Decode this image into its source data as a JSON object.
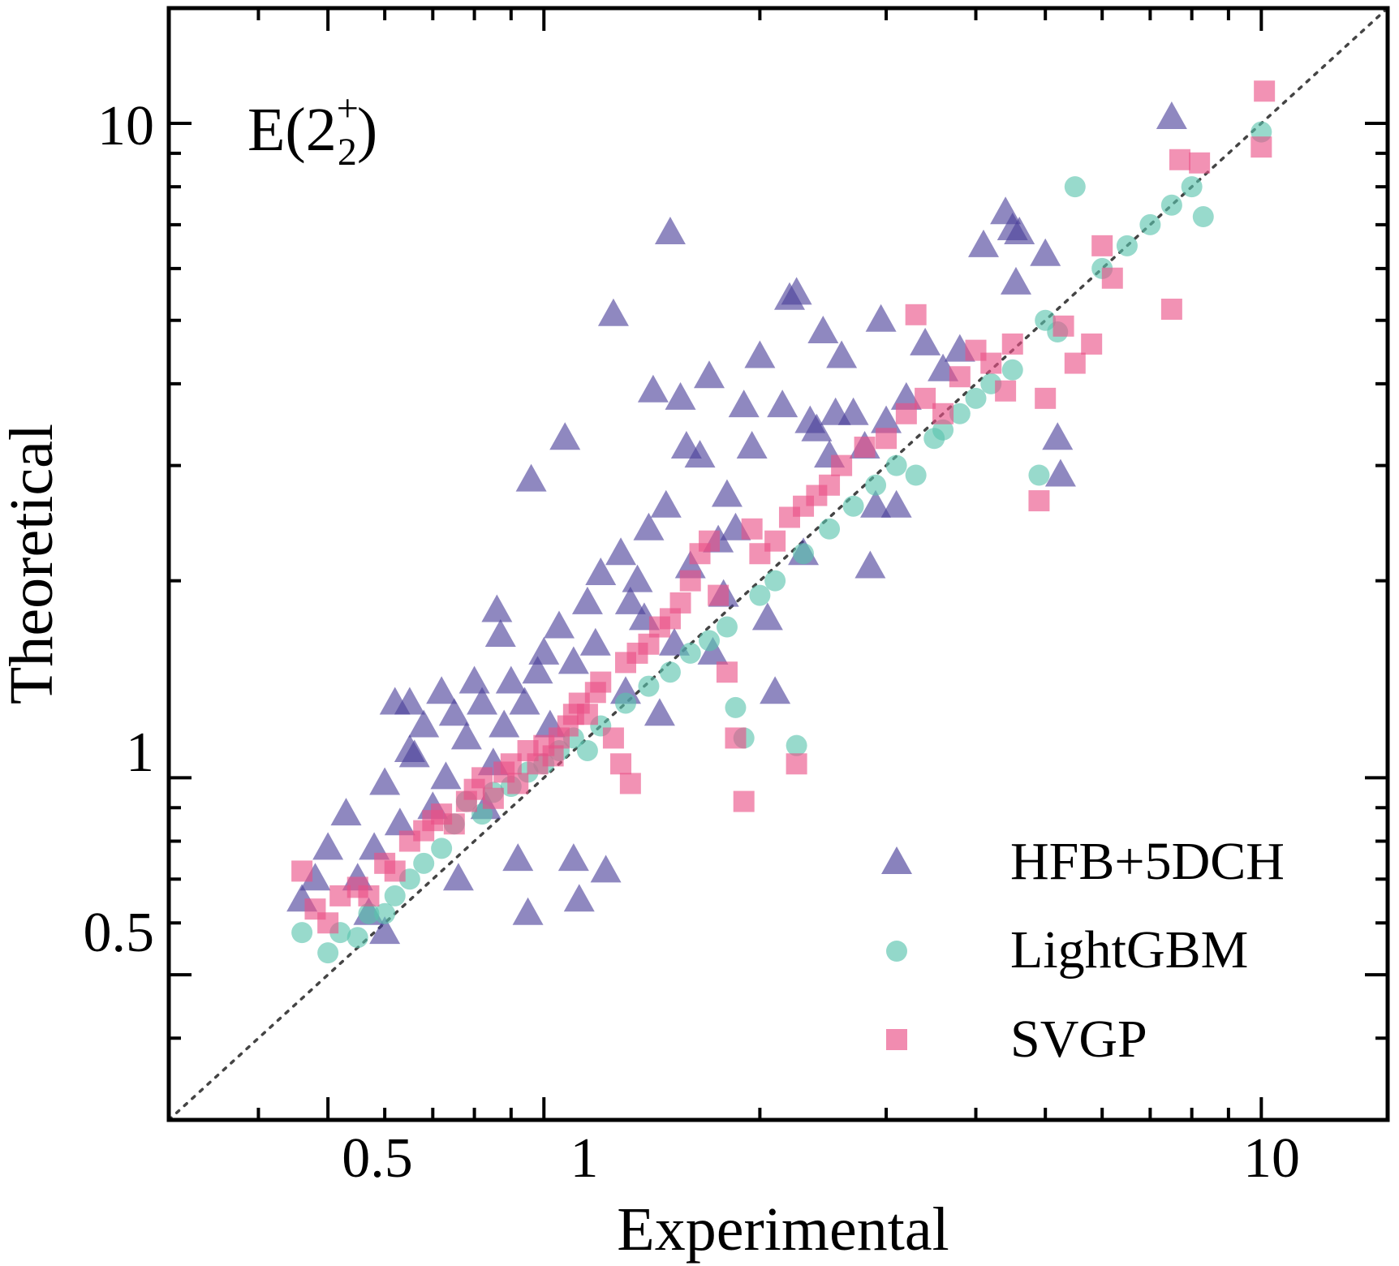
{
  "chart_data": {
    "type": "scatter",
    "title": "",
    "annotation": {
      "base": "E(2",
      "sup": "+",
      "sub": "2",
      "close": ")"
    },
    "xlabel": "Experimental",
    "ylabel": "Theoretical",
    "xscale": "log",
    "yscale": "log",
    "xlim": [
      0.3,
      15
    ],
    "ylim": [
      0.3,
      15
    ],
    "x_tick_labels": [
      "0.5",
      "1",
      "10"
    ],
    "y_tick_labels": [
      "0.5",
      "1",
      "10"
    ],
    "reference_line": "y = x (dotted)",
    "grid": false,
    "legend_position": "bottom-right",
    "legend": [
      "HFB+5DCH",
      "LightGBM",
      "SVGP"
    ],
    "series": [
      {
        "name": "HFB+5DCH",
        "marker": "triangle",
        "color": "#4a3f9a",
        "points": [
          [
            0.46,
            0.65
          ],
          [
            0.48,
            0.7
          ],
          [
            0.5,
            0.78
          ],
          [
            0.53,
            0.88
          ],
          [
            0.55,
            0.7
          ],
          [
            0.57,
            0.62
          ],
          [
            0.58,
            0.78
          ],
          [
            0.6,
            0.98
          ],
          [
            0.6,
            0.58
          ],
          [
            0.62,
            1.3
          ],
          [
            0.63,
            0.85
          ],
          [
            0.65,
            1.3
          ],
          [
            0.65,
            1.1
          ],
          [
            0.66,
            1.08
          ],
          [
            0.68,
            1.2
          ],
          [
            0.7,
            0.9
          ],
          [
            0.72,
            1.35
          ],
          [
            0.73,
            1.0
          ],
          [
            0.75,
            1.25
          ],
          [
            0.76,
            0.7
          ],
          [
            0.78,
            1.15
          ],
          [
            0.8,
            1.4
          ],
          [
            0.82,
            1.3
          ],
          [
            0.83,
            0.9
          ],
          [
            0.85,
            1.05
          ],
          [
            0.86,
            1.8
          ],
          [
            0.87,
            1.65
          ],
          [
            0.88,
            1.2
          ],
          [
            0.9,
            1.4
          ],
          [
            0.92,
            0.75
          ],
          [
            0.94,
            1.3
          ],
          [
            0.95,
            0.62
          ],
          [
            0.96,
            2.85
          ],
          [
            0.98,
            1.45
          ],
          [
            1.0,
            1.55
          ],
          [
            1.02,
            1.2
          ],
          [
            1.05,
            1.7
          ],
          [
            1.07,
            3.3
          ],
          [
            1.1,
            1.5
          ],
          [
            1.1,
            0.75
          ],
          [
            1.12,
            0.65
          ],
          [
            1.15,
            1.85
          ],
          [
            1.18,
            1.6
          ],
          [
            1.2,
            2.05
          ],
          [
            1.22,
            0.72
          ],
          [
            1.25,
            5.1
          ],
          [
            1.28,
            2.2
          ],
          [
            1.3,
            1.35
          ],
          [
            1.32,
            1.85
          ],
          [
            1.35,
            2.0
          ],
          [
            1.38,
            1.75
          ],
          [
            1.4,
            2.4
          ],
          [
            1.42,
            3.9
          ],
          [
            1.45,
            1.25
          ],
          [
            1.48,
            2.6
          ],
          [
            1.5,
            6.8
          ],
          [
            1.52,
            1.6
          ],
          [
            1.55,
            3.8
          ],
          [
            1.58,
            3.2
          ],
          [
            1.6,
            2.1
          ],
          [
            1.65,
            3.1
          ],
          [
            1.7,
            4.1
          ],
          [
            1.72,
            1.55
          ],
          [
            1.75,
            2.3
          ],
          [
            1.78,
            1.9
          ],
          [
            1.8,
            2.7
          ],
          [
            1.85,
            2.4
          ],
          [
            1.9,
            3.7
          ],
          [
            1.95,
            3.2
          ],
          [
            2.0,
            4.4
          ],
          [
            2.05,
            1.75
          ],
          [
            2.1,
            1.35
          ],
          [
            2.15,
            3.7
          ],
          [
            2.2,
            5.4
          ],
          [
            2.25,
            5.5
          ],
          [
            2.3,
            2.2
          ],
          [
            2.35,
            3.5
          ],
          [
            2.4,
            3.4
          ],
          [
            2.45,
            4.8
          ],
          [
            2.5,
            3.1
          ],
          [
            2.55,
            3.6
          ],
          [
            2.6,
            4.4
          ],
          [
            2.7,
            3.6
          ],
          [
            2.8,
            3.2
          ],
          [
            2.85,
            2.1
          ],
          [
            2.9,
            2.6
          ],
          [
            2.95,
            5.0
          ],
          [
            3.0,
            3.5
          ],
          [
            3.1,
            2.6
          ],
          [
            3.2,
            3.8
          ],
          [
            3.4,
            4.6
          ],
          [
            3.6,
            4.2
          ],
          [
            3.8,
            4.5
          ],
          [
            4.1,
            6.5
          ],
          [
            4.4,
            7.3
          ],
          [
            4.5,
            6.9
          ],
          [
            4.55,
            5.7
          ],
          [
            4.6,
            6.8
          ],
          [
            5.0,
            6.3
          ],
          [
            5.2,
            3.3
          ],
          [
            5.25,
            2.9
          ],
          [
            7.5,
            10.2
          ]
        ]
      },
      {
        "name": "LightGBM",
        "marker": "circle",
        "color": "#59c3ad",
        "points": [
          [
            0.46,
            0.58
          ],
          [
            0.5,
            0.54
          ],
          [
            0.52,
            0.58
          ],
          [
            0.55,
            0.57
          ],
          [
            0.57,
            0.62
          ],
          [
            0.6,
            0.62
          ],
          [
            0.62,
            0.66
          ],
          [
            0.65,
            0.7
          ],
          [
            0.68,
            0.74
          ],
          [
            0.72,
            0.78
          ],
          [
            0.75,
            0.85
          ],
          [
            0.78,
            0.92
          ],
          [
            0.82,
            0.88
          ],
          [
            0.85,
            0.95
          ],
          [
            0.9,
            0.97
          ],
          [
            0.95,
            1.02
          ],
          [
            1.0,
            1.05
          ],
          [
            1.05,
            1.1
          ],
          [
            1.1,
            1.15
          ],
          [
            1.15,
            1.1
          ],
          [
            1.2,
            1.2
          ],
          [
            1.3,
            1.3
          ],
          [
            1.4,
            1.38
          ],
          [
            1.5,
            1.45
          ],
          [
            1.6,
            1.55
          ],
          [
            1.7,
            1.62
          ],
          [
            1.8,
            1.7
          ],
          [
            1.85,
            1.28
          ],
          [
            1.9,
            1.15
          ],
          [
            2.0,
            1.9
          ],
          [
            2.1,
            2.0
          ],
          [
            2.25,
            1.12
          ],
          [
            2.3,
            2.2
          ],
          [
            2.5,
            2.4
          ],
          [
            2.7,
            2.6
          ],
          [
            2.9,
            2.8
          ],
          [
            3.1,
            3.0
          ],
          [
            3.3,
            2.9
          ],
          [
            3.5,
            3.3
          ],
          [
            3.6,
            3.4
          ],
          [
            3.8,
            3.6
          ],
          [
            4.0,
            3.8
          ],
          [
            4.2,
            4.0
          ],
          [
            4.5,
            4.2
          ],
          [
            4.9,
            2.9
          ],
          [
            5.0,
            5.0
          ],
          [
            5.2,
            4.8
          ],
          [
            5.5,
            8.0
          ],
          [
            6.0,
            6.0
          ],
          [
            6.5,
            6.5
          ],
          [
            7.0,
            7.0
          ],
          [
            7.5,
            7.5
          ],
          [
            8.0,
            8.0
          ],
          [
            8.3,
            7.2
          ],
          [
            10.0,
            9.7
          ]
        ]
      },
      {
        "name": "SVGP",
        "marker": "square",
        "color": "#ea4f86",
        "points": [
          [
            0.46,
            0.72
          ],
          [
            0.48,
            0.63
          ],
          [
            0.5,
            0.6
          ],
          [
            0.52,
            0.66
          ],
          [
            0.55,
            0.68
          ],
          [
            0.57,
            0.66
          ],
          [
            0.6,
            0.74
          ],
          [
            0.62,
            0.72
          ],
          [
            0.65,
            0.8
          ],
          [
            0.68,
            0.83
          ],
          [
            0.7,
            0.86
          ],
          [
            0.72,
            0.88
          ],
          [
            0.75,
            0.85
          ],
          [
            0.78,
            0.92
          ],
          [
            0.8,
            0.96
          ],
          [
            0.82,
            1.0
          ],
          [
            0.85,
            0.93
          ],
          [
            0.88,
            1.02
          ],
          [
            0.9,
            1.05
          ],
          [
            0.92,
            0.98
          ],
          [
            0.95,
            1.1
          ],
          [
            0.98,
            1.05
          ],
          [
            1.0,
            1.12
          ],
          [
            1.03,
            1.08
          ],
          [
            1.05,
            1.15
          ],
          [
            1.08,
            1.2
          ],
          [
            1.1,
            1.25
          ],
          [
            1.12,
            1.3
          ],
          [
            1.15,
            1.25
          ],
          [
            1.18,
            1.35
          ],
          [
            1.2,
            1.4
          ],
          [
            1.25,
            1.15
          ],
          [
            1.28,
            1.05
          ],
          [
            1.3,
            1.5
          ],
          [
            1.32,
            0.98
          ],
          [
            1.35,
            1.55
          ],
          [
            1.4,
            1.6
          ],
          [
            1.45,
            1.7
          ],
          [
            1.5,
            1.75
          ],
          [
            1.55,
            1.85
          ],
          [
            1.6,
            2.0
          ],
          [
            1.65,
            2.2
          ],
          [
            1.7,
            2.3
          ],
          [
            1.75,
            1.9
          ],
          [
            1.8,
            1.45
          ],
          [
            1.85,
            1.15
          ],
          [
            1.9,
            0.92
          ],
          [
            1.95,
            2.4
          ],
          [
            2.0,
            2.2
          ],
          [
            2.1,
            2.3
          ],
          [
            2.2,
            2.5
          ],
          [
            2.25,
            1.05
          ],
          [
            2.3,
            2.6
          ],
          [
            2.4,
            2.7
          ],
          [
            2.5,
            2.8
          ],
          [
            2.6,
            3.0
          ],
          [
            2.8,
            3.2
          ],
          [
            3.0,
            3.3
          ],
          [
            3.2,
            3.6
          ],
          [
            3.3,
            5.1
          ],
          [
            3.4,
            3.8
          ],
          [
            3.6,
            3.6
          ],
          [
            3.8,
            4.1
          ],
          [
            4.0,
            4.5
          ],
          [
            4.2,
            4.3
          ],
          [
            4.4,
            3.9
          ],
          [
            4.5,
            4.6
          ],
          [
            4.9,
            2.65
          ],
          [
            5.0,
            3.8
          ],
          [
            5.3,
            4.9
          ],
          [
            5.5,
            4.3
          ],
          [
            5.8,
            4.6
          ],
          [
            6.0,
            6.5
          ],
          [
            6.2,
            5.8
          ],
          [
            7.5,
            5.2
          ],
          [
            7.7,
            8.8
          ],
          [
            8.2,
            8.7
          ],
          [
            10.0,
            9.2
          ],
          [
            10.1,
            11.2
          ]
        ]
      }
    ]
  }
}
